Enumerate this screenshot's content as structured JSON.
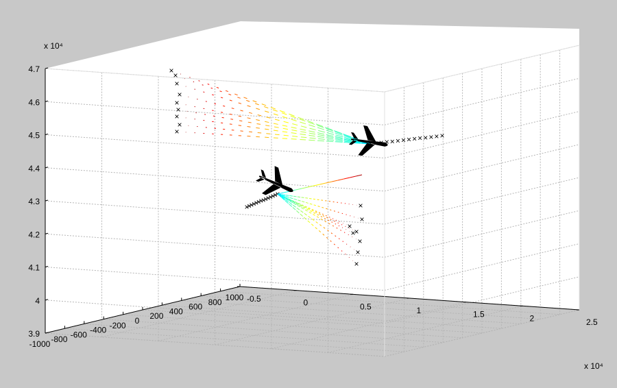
{
  "chart_data": {
    "type": "scatter",
    "title": "",
    "xlabel": "",
    "ylabel": "",
    "zlabel": "",
    "x_ticks": [
      -1000,
      -800,
      -600,
      -400,
      -200,
      0,
      200,
      400,
      600,
      800,
      1000
    ],
    "y_ticks": [
      -0.5,
      0,
      0.5,
      1,
      1.5,
      2,
      2.5
    ],
    "z_ticks": [
      3.9,
      4,
      4.1,
      4.2,
      4.3,
      4.4,
      4.5,
      4.6,
      4.7
    ],
    "x_tick_labels": [
      "-1000",
      "-800",
      "-600",
      "-400",
      "-200",
      "0",
      "200",
      "400",
      "600",
      "800",
      "1000"
    ],
    "y_tick_labels": [
      "-0.5",
      "0",
      "0.5",
      "1",
      "1.5",
      "2",
      "2.5"
    ],
    "z_tick_labels": [
      "3.9",
      "4",
      "4.1",
      "4.2",
      "4.3",
      "4.4",
      "4.5",
      "4.6",
      "4.7"
    ],
    "y_exponent_label": "x 10⁴",
    "z_exponent_label": "x 10⁴",
    "xlim": [
      -1000,
      1000
    ],
    "ylim": [
      -0.5,
      2.5
    ],
    "zlim": [
      3.9,
      4.7
    ],
    "grid": true,
    "colormap": "jet",
    "series": [
      {
        "tracks_from": [
          -80,
          1.85,
          4.5
        ],
        "tracks_to_x": [
          -960,
          -900,
          -860
        ],
        "tracks_to_z": [
          4.5,
          4.55,
          4.6,
          4.65,
          4.7
        ],
        "aircraft_at": [
          -80,
          1.85,
          4.5
        ]
      },
      {
        "tracks_from": [
          -310,
          0.35,
          4.35
        ],
        "tracks_to_x": [
          340,
          380,
          420
        ],
        "tracks_to_z": [
          4.1,
          4.15,
          4.2,
          4.25,
          4.32
        ],
        "aircraft_at": [
          -310,
          0.35,
          4.35
        ]
      }
    ]
  },
  "colors": {
    "background": "#c8c8c8",
    "axes": "#ffffff",
    "grid": "#b0b0b0",
    "aircraft": "#000000"
  }
}
